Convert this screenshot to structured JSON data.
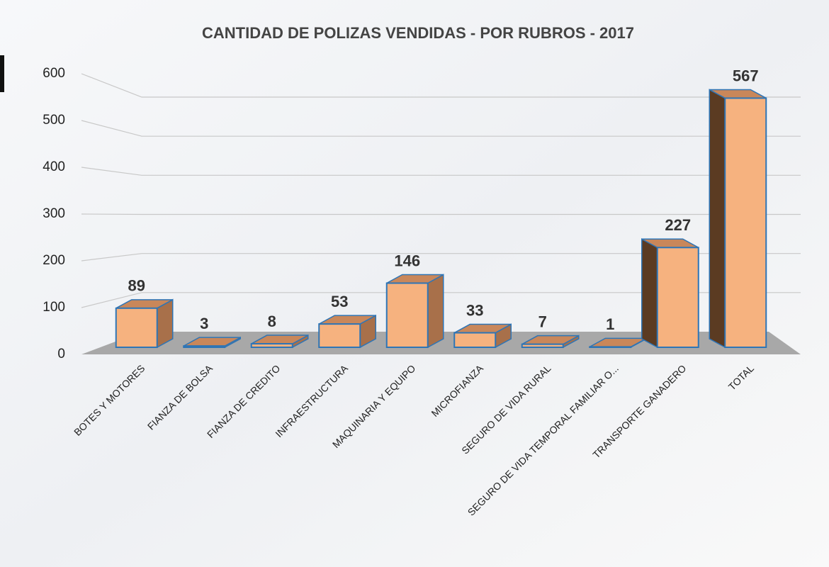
{
  "chart_data": {
    "type": "bar3d",
    "title": "CANTIDAD DE POLIZAS VENDIDAS - POR RUBROS - 2017",
    "categories": [
      "BOTES Y MOTORES",
      "FIANZA DE BOLSA",
      "FIANZA DE CREDITO",
      "INFRAESTRUCTURA",
      "MAQUINARIA Y EQUIPO",
      "MICROFIANZA",
      "SEGURO DE VIDA  RURAL",
      "SEGURO DE VIDA TEMPORAL FAMILIAR O...",
      "TRANSPORTE GANADERO",
      "TOTAL"
    ],
    "values": [
      89,
      3,
      8,
      53,
      146,
      33,
      7,
      1,
      227,
      567
    ],
    "color": "#f6b27f",
    "ylim": [
      0,
      600
    ],
    "yticks": [
      0,
      100,
      200,
      300,
      400,
      500,
      600
    ],
    "grid": true
  }
}
